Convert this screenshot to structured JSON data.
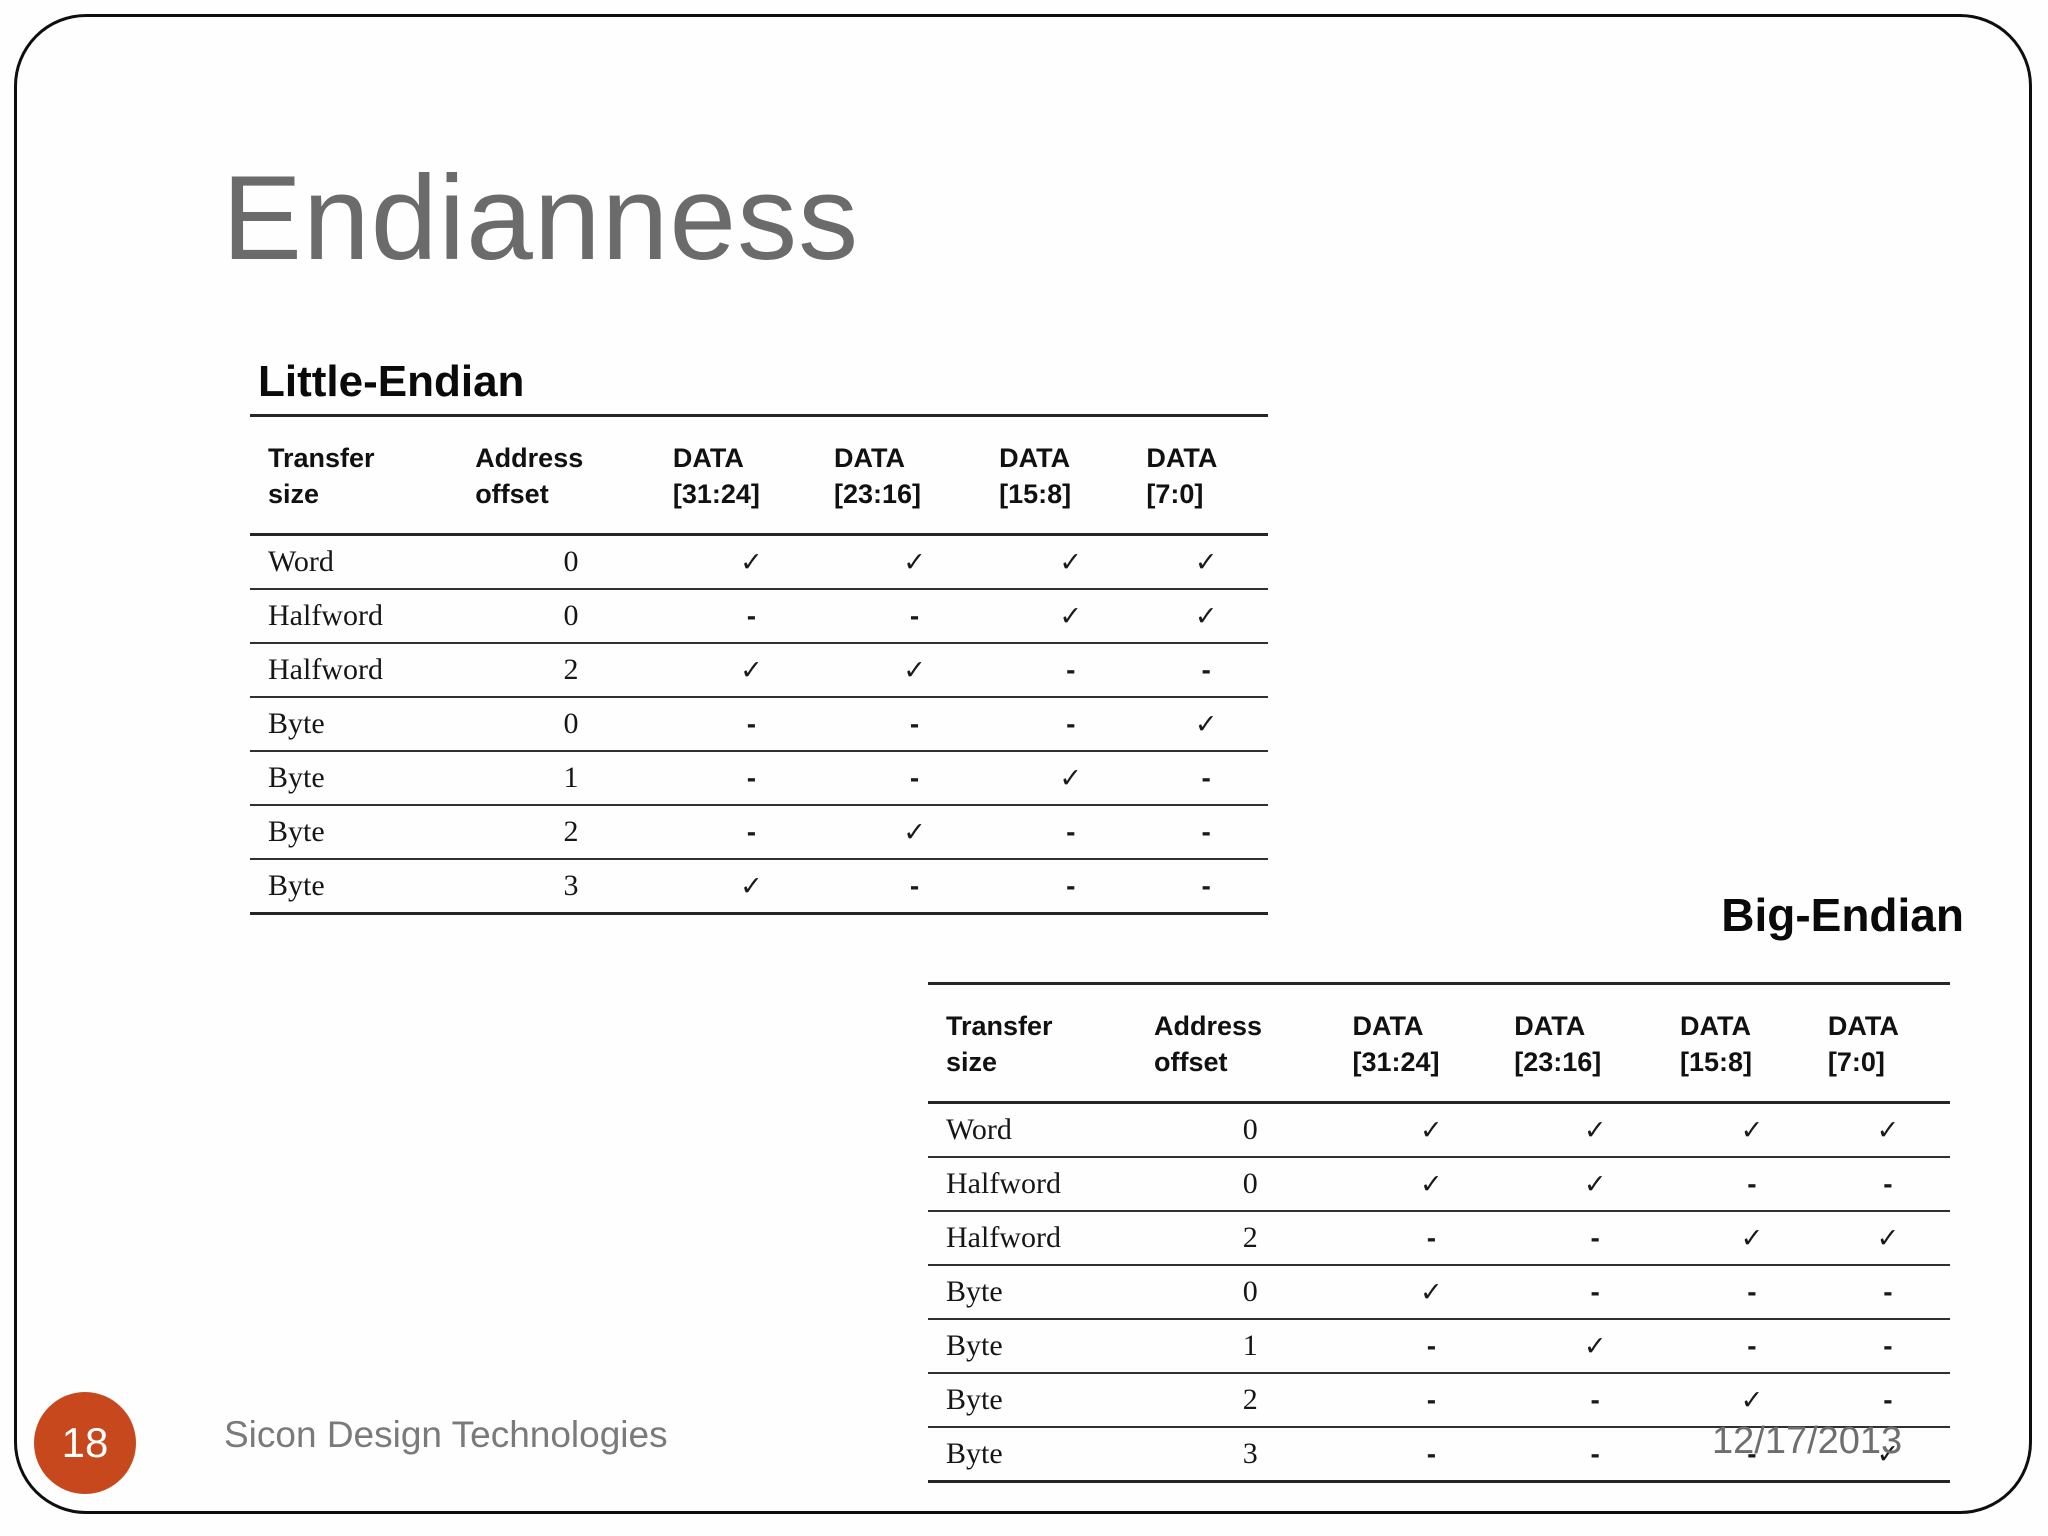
{
  "slide": {
    "title": "Endianness",
    "page_number": "18",
    "footer": {
      "company": "Sicon Design Technologies",
      "date": "12/17/2013"
    },
    "accent_color": "#C6481C",
    "title_color": "#6B6B6B",
    "footer_text_color": "#7A7A7A"
  },
  "tables": [
    {
      "id": "little-endian",
      "heading": "Little-Endian",
      "columns": [
        {
          "line1": "Transfer",
          "line2": "size"
        },
        {
          "line1": "Address",
          "line2": "offset"
        },
        {
          "line1": "DATA",
          "line2": "[31:24]"
        },
        {
          "line1": "DATA",
          "line2": "[23:16]"
        },
        {
          "line1": "DATA",
          "line2": "[15:8]"
        },
        {
          "line1": "DATA",
          "line2": "[7:0]"
        }
      ],
      "rows": [
        [
          "Word",
          "0",
          "✓",
          "✓",
          "✓",
          "✓"
        ],
        [
          "Halfword",
          "0",
          "-",
          "-",
          "✓",
          "✓"
        ],
        [
          "Halfword",
          "2",
          "✓",
          "✓",
          "-",
          "-"
        ],
        [
          "Byte",
          "0",
          "-",
          "-",
          "-",
          "✓"
        ],
        [
          "Byte",
          "1",
          "-",
          "-",
          "✓",
          "-"
        ],
        [
          "Byte",
          "2",
          "-",
          "✓",
          "-",
          "-"
        ],
        [
          "Byte",
          "3",
          "✓",
          "-",
          "-",
          "-"
        ]
      ]
    },
    {
      "id": "big-endian",
      "heading": "Big-Endian",
      "columns": [
        {
          "line1": "Transfer",
          "line2": "size"
        },
        {
          "line1": "Address",
          "line2": "offset"
        },
        {
          "line1": "DATA",
          "line2": "[31:24]"
        },
        {
          "line1": "DATA",
          "line2": "[23:16]"
        },
        {
          "line1": "DATA",
          "line2": "[15:8]"
        },
        {
          "line1": "DATA",
          "line2": "[7:0]"
        }
      ],
      "rows": [
        [
          "Word",
          "0",
          "✓",
          "✓",
          "✓",
          "✓"
        ],
        [
          "Halfword",
          "0",
          "✓",
          "✓",
          "-",
          "-"
        ],
        [
          "Halfword",
          "2",
          "-",
          "-",
          "✓",
          "✓"
        ],
        [
          "Byte",
          "0",
          "✓",
          "-",
          "-",
          "-"
        ],
        [
          "Byte",
          "1",
          "-",
          "✓",
          "-",
          "-"
        ],
        [
          "Byte",
          "2",
          "-",
          "-",
          "✓",
          "-"
        ],
        [
          "Byte",
          "3",
          "-",
          "-",
          "-",
          "✓"
        ]
      ]
    }
  ]
}
